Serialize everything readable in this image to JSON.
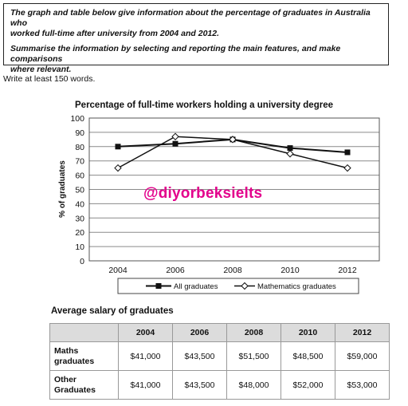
{
  "task": {
    "line1": "The graph and table below give information about the percentage of graduates in Australia who",
    "line2": "worked full-time after university from 2004 and 2012.",
    "line3": "Summarise the information by selecting and reporting the main features, and make comparisons",
    "line4": "where relevant."
  },
  "word_count_note": "Write at least 150 words.",
  "watermark": "@diyorbeksielts",
  "chart_data": {
    "type": "line",
    "title": "Percentage of full-time workers holding a university degree",
    "xlabel": "",
    "ylabel": "% of graduates",
    "x": [
      "2004",
      "2006",
      "2008",
      "2010",
      "2012"
    ],
    "ylim": [
      0,
      100
    ],
    "yticks": [
      0,
      10,
      20,
      30,
      40,
      50,
      60,
      70,
      80,
      90,
      100
    ],
    "grid": true,
    "legend_position": "bottom",
    "series": [
      {
        "name": "All graduates",
        "marker": "square-filled",
        "values": [
          80,
          82,
          85,
          79,
          76
        ]
      },
      {
        "name": "Mathematics graduates",
        "marker": "diamond-open",
        "values": [
          65,
          87,
          85,
          75,
          65
        ]
      }
    ]
  },
  "salary_table": {
    "title": "Average salary of graduates",
    "headers": [
      "",
      "2004",
      "2006",
      "2008",
      "2010",
      "2012"
    ],
    "rows": [
      {
        "label_line1": "Maths",
        "label_line2": "graduates",
        "values": [
          "$41,000",
          "$43,500",
          "$51,500",
          "$48,500",
          "$59,000"
        ]
      },
      {
        "label_line1": "Other",
        "label_line2": "Graduates",
        "values": [
          "$41,000",
          "$43,500",
          "$48,000",
          "$52,000",
          "$53,000"
        ]
      }
    ]
  }
}
